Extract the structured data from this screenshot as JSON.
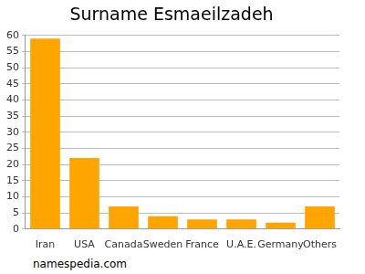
{
  "chart_data": {
    "type": "bar",
    "title": "Surname Esmaeilzadeh",
    "categories": [
      "Iran",
      "USA",
      "Canada",
      "Sweden",
      "France",
      "U.A.E.",
      "Germany",
      "Others"
    ],
    "values": [
      59,
      22,
      7,
      4,
      3,
      3,
      2,
      7
    ],
    "color": "#ffa500",
    "ylim": [
      0,
      60
    ],
    "yticks": [
      0,
      5,
      10,
      15,
      20,
      25,
      30,
      35,
      40,
      45,
      50,
      55,
      60
    ],
    "grid": true,
    "annotations": [
      "namespedia.com"
    ]
  }
}
